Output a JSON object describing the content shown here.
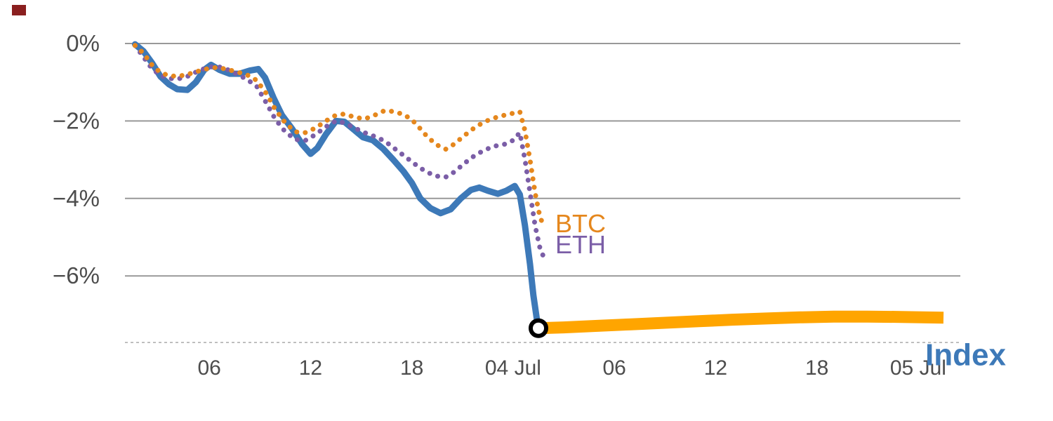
{
  "decoration": {
    "top_left_mark_color": "#8a1f1f"
  },
  "chart_data": {
    "type": "line",
    "title": "",
    "xlabel": "",
    "ylabel": "",
    "x_unit": "hours (time of day, 03 Jul - 05 Jul)",
    "y_unit": "percent change",
    "xlim": [
      1.0,
      50.5
    ],
    "ylim": [
      -7.72,
      0
    ],
    "grid": "horizontal",
    "legend_position": "inline-annotations",
    "colors": {
      "grid": "#999999",
      "tick_text": "#4d4d4d",
      "axis_line": "#aaaaaa",
      "index_blue": "#3d79b8",
      "btc_orange": "#e5871d",
      "eth_purple": "#7b5ea7",
      "continuation_orange": "#ffa500",
      "marker_stroke": "#000000",
      "marker_fill": "#ffffff"
    },
    "y_axis": {
      "ticks": [
        {
          "v": 0,
          "label": "0%"
        },
        {
          "v": -2,
          "label": "−2%"
        },
        {
          "v": -4,
          "label": "−4%"
        },
        {
          "v": -6,
          "label": "−6%"
        }
      ]
    },
    "x_axis": {
      "ticks": [
        {
          "t": 6,
          "label": "06"
        },
        {
          "t": 12,
          "label": "12"
        },
        {
          "t": 18,
          "label": "18"
        },
        {
          "t": 24,
          "label": "04 Jul"
        },
        {
          "t": 30,
          "label": "06"
        },
        {
          "t": 36,
          "label": "12"
        },
        {
          "t": 42,
          "label": "18"
        },
        {
          "t": 48,
          "label": "05 Jul"
        }
      ]
    },
    "series": [
      {
        "id": "index",
        "name": "Index",
        "color": "#3d79b8",
        "style": "solid",
        "width": 9,
        "cap": "round",
        "points": [
          [
            1.6,
            -0.02
          ],
          [
            2.1,
            -0.2
          ],
          [
            2.6,
            -0.5
          ],
          [
            3.1,
            -0.85
          ],
          [
            3.6,
            -1.05
          ],
          [
            4.1,
            -1.18
          ],
          [
            4.7,
            -1.2
          ],
          [
            5.2,
            -1.0
          ],
          [
            5.7,
            -0.68
          ],
          [
            6.1,
            -0.55
          ],
          [
            6.6,
            -0.68
          ],
          [
            7.2,
            -0.78
          ],
          [
            7.8,
            -0.78
          ],
          [
            8.4,
            -0.7
          ],
          [
            8.9,
            -0.66
          ],
          [
            9.3,
            -0.88
          ],
          [
            9.8,
            -1.4
          ],
          [
            10.3,
            -1.85
          ],
          [
            10.9,
            -2.2
          ],
          [
            11.5,
            -2.6
          ],
          [
            12.0,
            -2.85
          ],
          [
            12.4,
            -2.7
          ],
          [
            12.9,
            -2.35
          ],
          [
            13.5,
            -2.0
          ],
          [
            14.0,
            -2.02
          ],
          [
            14.5,
            -2.2
          ],
          [
            15.1,
            -2.42
          ],
          [
            15.7,
            -2.5
          ],
          [
            16.3,
            -2.72
          ],
          [
            16.9,
            -3.0
          ],
          [
            17.5,
            -3.3
          ],
          [
            18.0,
            -3.6
          ],
          [
            18.5,
            -4.0
          ],
          [
            19.1,
            -4.25
          ],
          [
            19.7,
            -4.38
          ],
          [
            20.3,
            -4.28
          ],
          [
            20.9,
            -4.0
          ],
          [
            21.5,
            -3.78
          ],
          [
            22.0,
            -3.72
          ],
          [
            22.5,
            -3.8
          ],
          [
            23.1,
            -3.88
          ],
          [
            23.6,
            -3.8
          ],
          [
            24.1,
            -3.68
          ],
          [
            24.4,
            -3.9
          ],
          [
            24.7,
            -4.7
          ],
          [
            25.0,
            -5.7
          ],
          [
            25.2,
            -6.5
          ],
          [
            25.4,
            -7.1
          ],
          [
            25.5,
            -7.35
          ]
        ]
      },
      {
        "id": "eth",
        "name": "ETH",
        "color": "#7b5ea7",
        "style": "dotted",
        "width": 7,
        "cap": "round",
        "label": {
          "text": "ETH",
          "t": 26.5,
          "v": -5.18,
          "size": 36,
          "weight": "normal"
        },
        "points": [
          [
            1.6,
            -0.05
          ],
          [
            2.1,
            -0.35
          ],
          [
            2.6,
            -0.65
          ],
          [
            3.1,
            -0.82
          ],
          [
            3.6,
            -0.9
          ],
          [
            4.1,
            -0.92
          ],
          [
            4.7,
            -0.85
          ],
          [
            5.2,
            -0.74
          ],
          [
            5.8,
            -0.63
          ],
          [
            6.4,
            -0.58
          ],
          [
            7.0,
            -0.66
          ],
          [
            7.6,
            -0.78
          ],
          [
            8.2,
            -0.92
          ],
          [
            8.8,
            -1.1
          ],
          [
            9.4,
            -1.55
          ],
          [
            9.9,
            -1.95
          ],
          [
            10.5,
            -2.28
          ],
          [
            11.1,
            -2.48
          ],
          [
            11.7,
            -2.5
          ],
          [
            12.3,
            -2.35
          ],
          [
            12.9,
            -2.15
          ],
          [
            13.5,
            -2.0
          ],
          [
            14.0,
            -2.05
          ],
          [
            14.6,
            -2.18
          ],
          [
            15.2,
            -2.3
          ],
          [
            15.8,
            -2.4
          ],
          [
            16.4,
            -2.52
          ],
          [
            17.0,
            -2.72
          ],
          [
            17.6,
            -2.92
          ],
          [
            18.2,
            -3.12
          ],
          [
            18.8,
            -3.3
          ],
          [
            19.4,
            -3.42
          ],
          [
            20.0,
            -3.45
          ],
          [
            20.5,
            -3.32
          ],
          [
            21.1,
            -3.1
          ],
          [
            21.7,
            -2.9
          ],
          [
            22.3,
            -2.75
          ],
          [
            22.9,
            -2.65
          ],
          [
            23.5,
            -2.6
          ],
          [
            24.0,
            -2.5
          ],
          [
            24.4,
            -2.3
          ],
          [
            24.7,
            -3.0
          ],
          [
            25.0,
            -3.85
          ],
          [
            25.3,
            -4.7
          ],
          [
            25.6,
            -5.3
          ],
          [
            25.85,
            -5.55
          ]
        ]
      },
      {
        "id": "btc",
        "name": "BTC",
        "color": "#e5871d",
        "style": "dotted",
        "width": 7,
        "cap": "round",
        "label": {
          "text": "BTC",
          "t": 26.5,
          "v": -4.64,
          "size": 36,
          "weight": "normal"
        },
        "points": [
          [
            1.6,
            -0.05
          ],
          [
            2.1,
            -0.25
          ],
          [
            2.6,
            -0.55
          ],
          [
            3.1,
            -0.75
          ],
          [
            3.6,
            -0.83
          ],
          [
            4.1,
            -0.85
          ],
          [
            4.7,
            -0.8
          ],
          [
            5.2,
            -0.73
          ],
          [
            5.8,
            -0.66
          ],
          [
            6.4,
            -0.62
          ],
          [
            7.0,
            -0.66
          ],
          [
            7.6,
            -0.73
          ],
          [
            8.2,
            -0.8
          ],
          [
            8.8,
            -0.95
          ],
          [
            9.4,
            -1.3
          ],
          [
            9.9,
            -1.7
          ],
          [
            10.5,
            -2.05
          ],
          [
            11.1,
            -2.28
          ],
          [
            11.7,
            -2.3
          ],
          [
            12.3,
            -2.18
          ],
          [
            12.9,
            -2.0
          ],
          [
            13.5,
            -1.85
          ],
          [
            14.0,
            -1.82
          ],
          [
            14.6,
            -1.9
          ],
          [
            15.2,
            -1.95
          ],
          [
            15.8,
            -1.85
          ],
          [
            16.4,
            -1.73
          ],
          [
            17.0,
            -1.76
          ],
          [
            17.6,
            -1.85
          ],
          [
            18.2,
            -2.05
          ],
          [
            18.8,
            -2.35
          ],
          [
            19.4,
            -2.6
          ],
          [
            20.0,
            -2.73
          ],
          [
            20.5,
            -2.6
          ],
          [
            21.1,
            -2.38
          ],
          [
            21.7,
            -2.18
          ],
          [
            22.3,
            -2.02
          ],
          [
            22.9,
            -1.92
          ],
          [
            23.5,
            -1.85
          ],
          [
            24.0,
            -1.8
          ],
          [
            24.4,
            -1.76
          ],
          [
            24.7,
            -2.25
          ],
          [
            25.0,
            -3.0
          ],
          [
            25.3,
            -3.85
          ],
          [
            25.6,
            -4.5
          ],
          [
            25.85,
            -4.72
          ]
        ]
      },
      {
        "id": "index_continuation",
        "name": "Index (continuation)",
        "color": "#ffa500",
        "style": "solid",
        "width": 17,
        "cap": "butt",
        "points": [
          [
            25.5,
            -7.35
          ],
          [
            27.0,
            -7.33
          ],
          [
            29.0,
            -7.29
          ],
          [
            31.0,
            -7.25
          ],
          [
            33.0,
            -7.21
          ],
          [
            35.0,
            -7.17
          ],
          [
            37.0,
            -7.13
          ],
          [
            39.0,
            -7.1
          ],
          [
            41.0,
            -7.07
          ],
          [
            43.0,
            -7.05
          ],
          [
            45.0,
            -7.05
          ],
          [
            47.0,
            -7.06
          ],
          [
            49.5,
            -7.08
          ]
        ]
      }
    ],
    "marker": {
      "t": 25.5,
      "v": -7.35,
      "shape": "open-circle",
      "stroke": "#000000",
      "fill": "#ffffff"
    },
    "axis_label": {
      "text": "Index",
      "color": "#3d79b8",
      "t": 48.42,
      "v": -8.02,
      "size": 44,
      "weight": "bold",
      "position": "bottom-right"
    }
  }
}
